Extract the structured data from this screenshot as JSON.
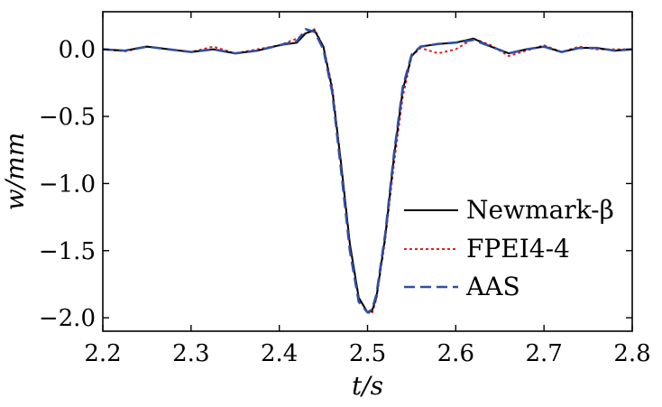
{
  "chart_data": {
    "type": "line",
    "xlabel": "t/s",
    "ylabel": "w/mm",
    "xlim": [
      2.2,
      2.8
    ],
    "ylim": [
      -2.1,
      0.28
    ],
    "xticks": [
      "2.2",
      "2.3",
      "2.4",
      "2.5",
      "2.6",
      "2.7",
      "2.8"
    ],
    "yticks": [
      "0.0",
      "−0.5",
      "−1.0",
      "−1.5",
      "−2.0"
    ],
    "grid": false,
    "legend_position": "right",
    "series": [
      {
        "name": "Newmark-β",
        "color": "#000000",
        "dash": "solid",
        "x": [
          2.2,
          2.225,
          2.25,
          2.275,
          2.3,
          2.325,
          2.35,
          2.375,
          2.4,
          2.42,
          2.43,
          2.44,
          2.45,
          2.46,
          2.47,
          2.48,
          2.49,
          2.5,
          2.505,
          2.51,
          2.52,
          2.53,
          2.54,
          2.55,
          2.56,
          2.57,
          2.58,
          2.6,
          2.62,
          2.64,
          2.66,
          2.68,
          2.7,
          2.72,
          2.74,
          2.76,
          2.78,
          2.8
        ],
        "y": [
          0.0,
          -0.01,
          0.02,
          0.0,
          -0.02,
          0.0,
          -0.03,
          -0.01,
          0.03,
          0.05,
          0.12,
          0.14,
          0.02,
          -0.3,
          -0.85,
          -1.45,
          -1.85,
          -1.96,
          -1.95,
          -1.85,
          -1.4,
          -0.8,
          -0.3,
          -0.05,
          0.02,
          0.03,
          0.04,
          0.05,
          0.08,
          0.02,
          -0.03,
          0.0,
          0.02,
          -0.02,
          0.01,
          0.01,
          -0.01,
          0.0
        ]
      },
      {
        "name": "FPEI4-4",
        "color": "#e02020",
        "dash": "dotted",
        "x": [
          2.2,
          2.225,
          2.25,
          2.275,
          2.3,
          2.325,
          2.35,
          2.375,
          2.4,
          2.42,
          2.43,
          2.44,
          2.45,
          2.46,
          2.47,
          2.48,
          2.49,
          2.5,
          2.505,
          2.51,
          2.52,
          2.53,
          2.54,
          2.55,
          2.56,
          2.57,
          2.58,
          2.6,
          2.62,
          2.64,
          2.66,
          2.68,
          2.7,
          2.72,
          2.74,
          2.76,
          2.78,
          2.8
        ],
        "y": [
          0.0,
          -0.015,
          0.02,
          0.0,
          -0.02,
          0.02,
          -0.03,
          0.0,
          0.03,
          0.08,
          0.12,
          0.15,
          0.02,
          -0.28,
          -0.85,
          -1.45,
          -1.85,
          -1.96,
          -1.97,
          -1.86,
          -1.42,
          -0.85,
          -0.35,
          -0.05,
          0.01,
          -0.01,
          -0.03,
          0.0,
          0.08,
          0.03,
          -0.05,
          -0.01,
          0.03,
          -0.02,
          0.02,
          0.0,
          0.0,
          0.0
        ]
      },
      {
        "name": "AAS",
        "color": "#2f4fa0",
        "dash": "dashed",
        "x": [
          2.2,
          2.225,
          2.25,
          2.275,
          2.3,
          2.325,
          2.35,
          2.375,
          2.4,
          2.42,
          2.43,
          2.44,
          2.45,
          2.46,
          2.47,
          2.48,
          2.49,
          2.5,
          2.505,
          2.51,
          2.52,
          2.53,
          2.54,
          2.55,
          2.56,
          2.57,
          2.58,
          2.6,
          2.62,
          2.64,
          2.66,
          2.68,
          2.7,
          2.72,
          2.74,
          2.76,
          2.78,
          2.8
        ],
        "y": [
          0.0,
          -0.01,
          0.02,
          0.0,
          -0.02,
          0.0,
          -0.03,
          -0.01,
          0.03,
          0.06,
          0.15,
          0.13,
          0.0,
          -0.32,
          -0.9,
          -1.5,
          -1.88,
          -1.96,
          -1.94,
          -1.83,
          -1.38,
          -0.78,
          -0.28,
          -0.04,
          0.02,
          0.03,
          0.04,
          0.05,
          0.07,
          0.02,
          -0.03,
          0.0,
          0.02,
          -0.02,
          0.01,
          0.01,
          -0.01,
          0.0
        ]
      }
    ]
  }
}
